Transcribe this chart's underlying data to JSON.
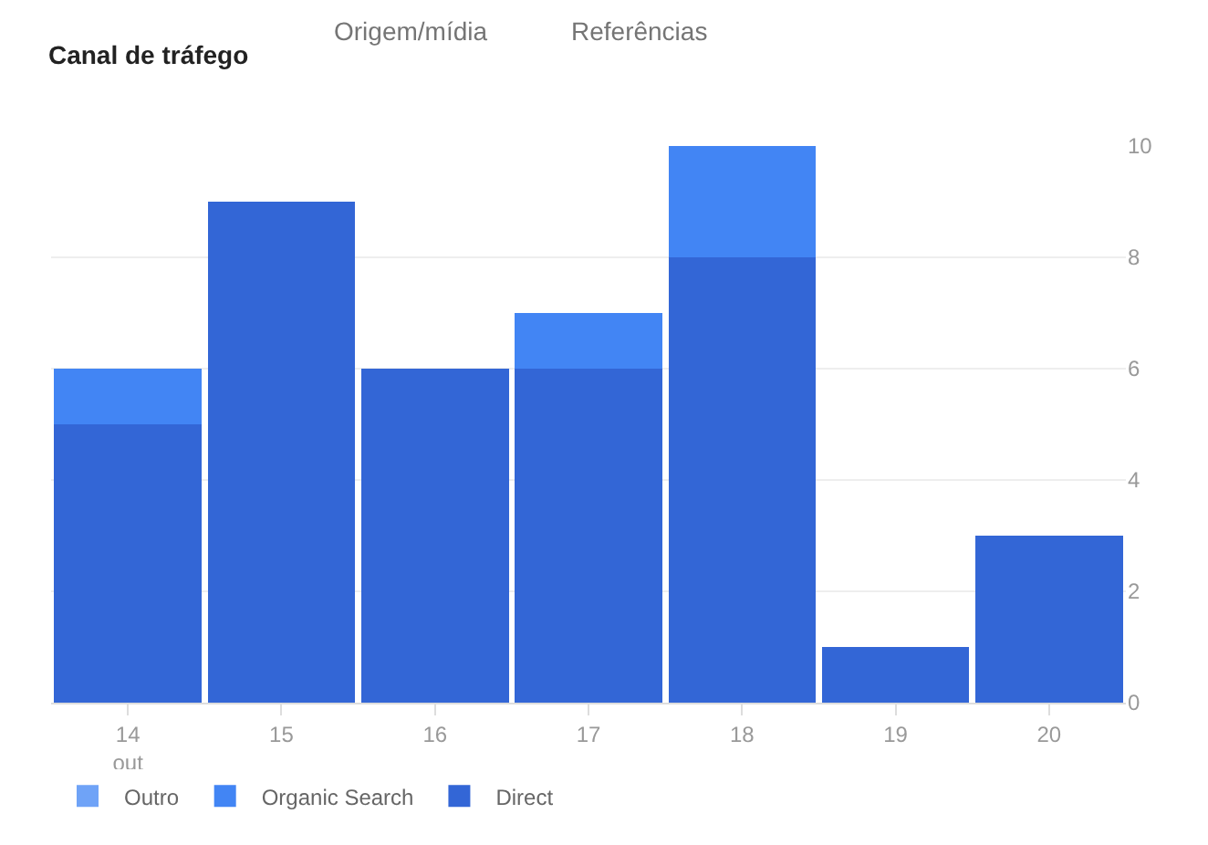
{
  "chart_data": {
    "type": "bar",
    "title": "Canal de tráfego",
    "annotations": [
      "Origem/mídia",
      "Referências"
    ],
    "categories": [
      "14\nout",
      "15",
      "16",
      "17",
      "18",
      "19",
      "20"
    ],
    "series": [
      {
        "name": "Direct",
        "color": "#3366d6",
        "values": [
          5,
          9,
          6,
          6,
          8,
          1,
          3
        ]
      },
      {
        "name": "Organic Search",
        "color": "#4285f4",
        "values": [
          1,
          0,
          0,
          1,
          2,
          0,
          0
        ]
      },
      {
        "name": "Outro",
        "color": "#6fa3f7",
        "values": [
          0,
          0,
          0,
          0,
          0,
          0,
          0
        ]
      }
    ],
    "stacked": true,
    "ylim": [
      0,
      10
    ],
    "yticks": [
      0,
      2,
      4,
      6,
      8,
      10
    ],
    "grid": "y",
    "legend": "bottom left"
  }
}
